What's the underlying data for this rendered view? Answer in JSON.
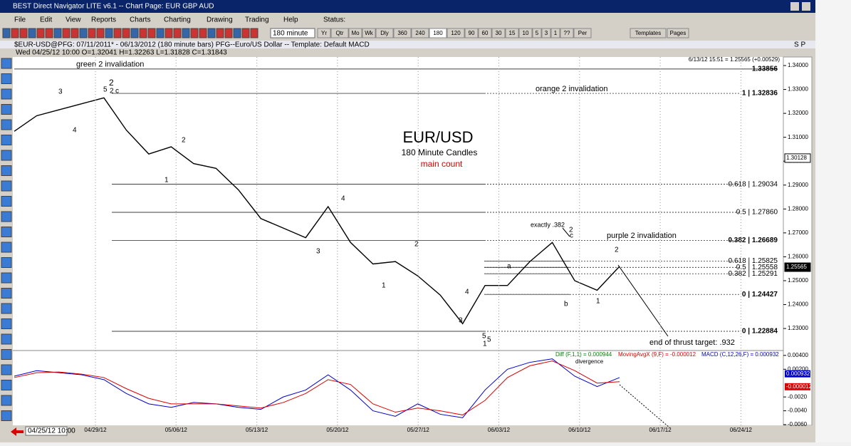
{
  "window": {
    "title": "BEST Direct Navigator LITE v6.1  --  Chart Page: EUR GBP AUD"
  },
  "menu": [
    "File",
    "Edit",
    "View",
    "Reports",
    "Charts",
    "Charting",
    "Drawing",
    "Trading",
    "Help",
    "Status:"
  ],
  "toolbar": {
    "interval": "180 minute",
    "periods": [
      "Yr",
      "Qtr",
      "Mo",
      "Wk",
      "Dly",
      "360",
      "240",
      "180",
      "120",
      "90",
      "60",
      "30",
      "15",
      "10",
      "5",
      "3",
      "1",
      "??",
      "Per"
    ],
    "templates": "Templates",
    "pages": "Pages"
  },
  "symbol_bar": {
    "text": "$EUR-USD@PFG:  07/11/2011* - 06/13/2012  (180 minute bars)   PFG--Euro/US Dollar  --  Template: Default MACD",
    "right": "S P"
  },
  "info_bar": "Wed  04/25/12 10:00  O=1.32041  H=1.32263  L=1.31828  C=1.31843",
  "chart": {
    "last_quote": "6/13/12 15:51 = 1.25565 (+0.00529)",
    "title": "EUR/USD",
    "subtitle": "180 Minute Candles",
    "count": "main count",
    "ylim": [
      1.22138,
      1.34358
    ],
    "yticks": [
      {
        "value": 1.34,
        "label": "1.34000"
      },
      {
        "value": 1.33,
        "label": "1.33000"
      },
      {
        "value": 1.32,
        "label": "1.32000"
      },
      {
        "value": 1.31,
        "label": "1.31000"
      },
      {
        "value": 1.3,
        "label": "1.30000"
      },
      {
        "value": 1.29,
        "label": "1.29000"
      },
      {
        "value": 1.28,
        "label": "1.28000"
      },
      {
        "value": 1.27,
        "label": "1.27000"
      },
      {
        "value": 1.26,
        "label": "1.26000"
      },
      {
        "value": 1.25,
        "label": "1.25000"
      },
      {
        "value": 1.24,
        "label": "1.24000"
      },
      {
        "value": 1.23,
        "label": "1.23000"
      }
    ],
    "price_tags": [
      {
        "value": 1.30128,
        "label": "1.30128"
      },
      {
        "value": 1.25565,
        "label": "1.25565"
      }
    ],
    "price": [
      1.3125,
      1.319,
      1.3215,
      1.324,
      1.3265,
      1.313,
      1.303,
      1.306,
      1.299,
      1.297,
      1.288,
      1.276,
      1.272,
      1.268,
      1.281,
      1.266,
      1.257,
      1.258,
      1.252,
      1.244,
      1.232,
      1.248,
      1.248,
      1.258,
      1.266,
      1.25,
      1.246,
      1.256
    ],
    "levels": [
      {
        "value": 1.33856,
        "label": "1.33856",
        "note": "green 2 invalidation"
      },
      {
        "value": 1.32836,
        "label": "1 | 1.32836",
        "note": "orange 2 invalidation"
      },
      {
        "value": 1.29034,
        "label": "0.618 | 1.29034"
      },
      {
        "value": 1.2786,
        "label": "0.5 | 1.27860"
      },
      {
        "value": 1.26689,
        "label": "0.382 | 1.26689",
        "note": "purple 2 invalidation"
      },
      {
        "value": 1.25825,
        "label": "0.618 | 1.25825"
      },
      {
        "value": 1.25558,
        "label": "0.5 | 1.25558"
      },
      {
        "value": 1.25291,
        "label": "0.382 | 1.25291"
      },
      {
        "value": 1.24427,
        "label": "0 | 1.24427"
      },
      {
        "value": 1.22884,
        "label": "0 | 1.22884"
      }
    ],
    "annotations": {
      "exactly": "exactly .382",
      "target": "end of thrust target: .932",
      "divergence": "divergence"
    },
    "waves": [
      "3",
      "5",
      "4",
      "2",
      "2",
      "c",
      "1",
      "2",
      "3",
      "4",
      "2",
      "1",
      "3",
      "4",
      "5",
      "1",
      "5",
      "a",
      "b",
      "2",
      "c",
      "2",
      "1"
    ],
    "dates": [
      "04/29/12",
      "05/06/12",
      "05/13/12",
      "05/20/12",
      "05/27/12",
      "06/03/12",
      "06/10/12",
      "06/17/12",
      "06/24/12"
    ],
    "cursor_date": "04/25/12 10:00"
  },
  "macd": {
    "legend": [
      "Diff (F,1,1) = 0.000944",
      "MovingAvgX (9,F) = -0.000012",
      "MACD (C,12,26,F) = 0.000932"
    ],
    "ylim": [
      -0.0061,
      0.0046
    ],
    "yticks": [
      {
        "value": 0.004,
        "label": "0.00400"
      },
      {
        "value": 0.002,
        "label": "0.00200"
      },
      {
        "value": -0.002,
        "label": "-0.0020"
      },
      {
        "value": -0.004,
        "label": "-0.0040"
      },
      {
        "value": -0.006,
        "label": "-0.0060"
      }
    ],
    "tags": [
      {
        "value": 0.000932,
        "label": "0.000932"
      },
      {
        "value": -1.2e-05,
        "label": "-0.000012"
      }
    ],
    "macd": [
      0.001,
      0.0018,
      0.0015,
      0.0012,
      0.0005,
      -0.0015,
      -0.003,
      -0.0035,
      -0.0028,
      -0.003,
      -0.0035,
      -0.0038,
      -0.002,
      -0.001,
      0.0012,
      -0.001,
      -0.004,
      -0.0048,
      -0.003,
      -0.0045,
      -0.005,
      -0.001,
      0.002,
      0.003,
      0.0035,
      0.001,
      -0.0005,
      0.0008
    ],
    "signal": [
      0.0008,
      0.0015,
      0.0016,
      0.0013,
      0.0008,
      -0.0008,
      -0.0022,
      -0.003,
      -0.003,
      -0.003,
      -0.0033,
      -0.0036,
      -0.0028,
      -0.0015,
      0.0005,
      -0.0002,
      -0.003,
      -0.0042,
      -0.0036,
      -0.004,
      -0.0046,
      -0.0025,
      0.0008,
      0.0025,
      0.0032,
      0.0018,
      0.0,
      0.0002
    ]
  }
}
